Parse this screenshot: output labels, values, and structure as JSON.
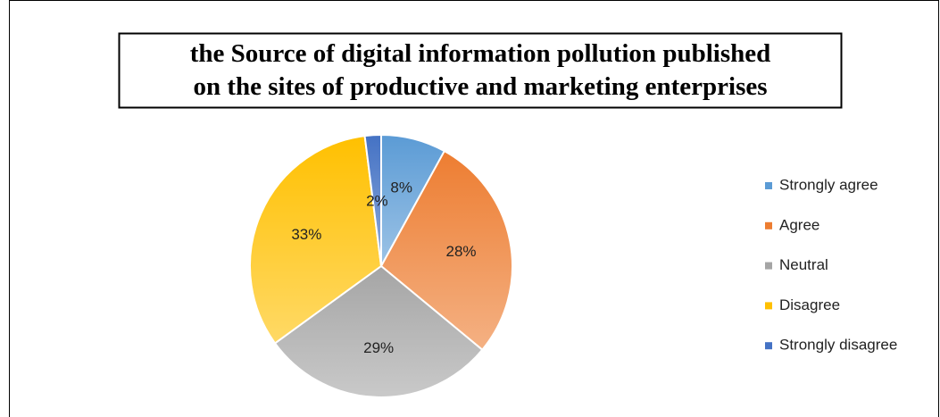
{
  "chart_data": {
    "type": "pie",
    "title": [
      "the Source of digital information pollution  published",
      "on the sites of productive and marketing enterprises"
    ],
    "categories": [
      "Strongly agree",
      "Agree",
      "Neutral",
      "Disagree",
      "Strongly disagree"
    ],
    "values": [
      8,
      28,
      29,
      33,
      2
    ],
    "value_labels": [
      "8%",
      "28%",
      "29%",
      "33%",
      "2%"
    ],
    "colors": [
      "#5b9bd5",
      "#ed7d31",
      "#a5a5a5",
      "#ffc000",
      "#4472c4"
    ],
    "legend": "right"
  }
}
